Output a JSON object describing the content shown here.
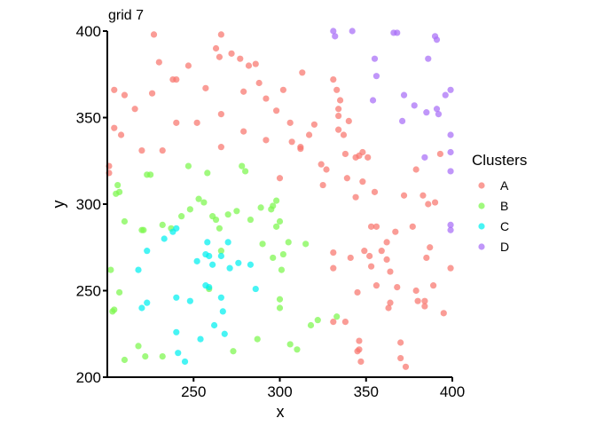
{
  "chart_data": {
    "type": "scatter",
    "title": "grid 7",
    "xlabel": "x",
    "ylabel": "y",
    "xlim": [
      200,
      400
    ],
    "ylim": [
      200,
      400
    ],
    "xticks": [
      250,
      300,
      350,
      400
    ],
    "yticks": [
      200,
      250,
      300,
      350,
      400
    ],
    "grid": false,
    "legend": {
      "title": "Clusters",
      "position": "right"
    },
    "series": [
      {
        "name": "A",
        "color": "#F8766D",
        "points": [
          [
            201,
            322
          ],
          [
            201,
            318
          ],
          [
            204,
            366
          ],
          [
            204,
            344
          ],
          [
            210,
            363
          ],
          [
            208,
            340
          ],
          [
            216,
            355
          ],
          [
            220,
            331
          ],
          [
            226,
            364
          ],
          [
            227,
            398
          ],
          [
            230,
            382
          ],
          [
            232,
            331
          ],
          [
            238,
            372
          ],
          [
            240,
            372
          ],
          [
            240,
            347
          ],
          [
            247,
            380
          ],
          [
            252,
            347
          ],
          [
            257,
            367
          ],
          [
            263,
            390
          ],
          [
            265,
            385
          ],
          [
            266,
            398
          ],
          [
            266,
            352
          ],
          [
            266,
            333
          ],
          [
            272,
            387
          ],
          [
            277,
            384
          ],
          [
            279,
            342
          ],
          [
            279,
            365
          ],
          [
            282,
            380
          ],
          [
            286,
            381
          ],
          [
            288,
            370
          ],
          [
            292,
            361
          ],
          [
            292,
            337
          ],
          [
            298,
            354
          ],
          [
            300,
            315
          ],
          [
            302,
            366
          ],
          [
            306,
            347
          ],
          [
            307,
            336
          ],
          [
            312,
            332
          ],
          [
            312,
            333
          ],
          [
            313,
            376
          ],
          [
            317,
            340
          ],
          [
            320,
            346
          ],
          [
            324,
            323
          ],
          [
            325,
            311
          ],
          [
            327,
            320
          ],
          [
            331,
            372
          ],
          [
            333,
            366
          ],
          [
            334,
            351
          ],
          [
            334,
            355
          ],
          [
            334,
            343
          ],
          [
            335,
            360
          ],
          [
            337,
            340
          ],
          [
            338,
            329
          ],
          [
            339,
            315
          ],
          [
            340,
            348
          ],
          [
            341,
            269
          ],
          [
            344,
            327
          ],
          [
            344,
            304
          ],
          [
            346,
            328
          ],
          [
            348,
            330
          ],
          [
            348,
            313
          ],
          [
            351,
            327
          ],
          [
            355,
            307
          ],
          [
            331,
            272
          ],
          [
            331,
            263
          ],
          [
            338,
            232
          ],
          [
            331,
            232
          ],
          [
            345,
            249
          ],
          [
            345,
            215
          ],
          [
            346,
            221
          ],
          [
            346,
            216
          ],
          [
            347,
            209
          ],
          [
            349,
            273
          ],
          [
            352,
            270
          ],
          [
            353,
            287
          ],
          [
            353,
            264
          ],
          [
            356,
            287
          ],
          [
            356,
            253
          ],
          [
            359,
            273
          ],
          [
            362,
            268
          ],
          [
            362,
            278
          ],
          [
            363,
            240
          ],
          [
            364,
            243
          ],
          [
            364,
            261
          ],
          [
            367,
            284
          ],
          [
            368,
            252
          ],
          [
            370,
            220
          ],
          [
            370,
            211
          ],
          [
            372,
            305
          ],
          [
            373,
            206
          ],
          [
            377,
            287
          ],
          [
            379,
            250
          ],
          [
            379,
            320
          ],
          [
            380,
            244
          ],
          [
            384,
            244
          ],
          [
            383,
            305
          ],
          [
            384,
            241
          ],
          [
            385,
            269
          ],
          [
            386,
            300
          ],
          [
            387,
            275
          ],
          [
            390,
            301
          ],
          [
            389,
            253
          ],
          [
            393,
            329
          ],
          [
            395,
            237
          ],
          [
            399,
            263
          ]
        ]
      },
      {
        "name": "B",
        "color": "#7CF74C",
        "points": [
          [
            202,
            262
          ],
          [
            203,
            238
          ],
          [
            204,
            239
          ],
          [
            205,
            306
          ],
          [
            206,
            311
          ],
          [
            207,
            307
          ],
          [
            207,
            249
          ],
          [
            210,
            290
          ],
          [
            210,
            210
          ],
          [
            218,
            218
          ],
          [
            220,
            285
          ],
          [
            221,
            285
          ],
          [
            222,
            212
          ],
          [
            223,
            317
          ],
          [
            225,
            317
          ],
          [
            232,
            288
          ],
          [
            232,
            212
          ],
          [
            237,
            286
          ],
          [
            243,
            293
          ],
          [
            247,
            322
          ],
          [
            248,
            297
          ],
          [
            253,
            303
          ],
          [
            256,
            301
          ],
          [
            258,
            318
          ],
          [
            259,
            251
          ],
          [
            261,
            293
          ],
          [
            263,
            291
          ],
          [
            265,
            286
          ],
          [
            266,
            273
          ],
          [
            270,
            294
          ],
          [
            275,
            296
          ],
          [
            278,
            322
          ],
          [
            280,
            319
          ],
          [
            283,
            291
          ],
          [
            287,
            222
          ],
          [
            289,
            298
          ],
          [
            290,
            277
          ],
          [
            295,
            297
          ],
          [
            296,
            269
          ],
          [
            296,
            299
          ],
          [
            298,
            302
          ],
          [
            298,
            287
          ],
          [
            300,
            290
          ],
          [
            300,
            245
          ],
          [
            300,
            240
          ],
          [
            301,
            262
          ],
          [
            302,
            271
          ],
          [
            305,
            278
          ],
          [
            306,
            219
          ],
          [
            310,
            216
          ],
          [
            315,
            277
          ],
          [
            318,
            230
          ],
          [
            322,
            233
          ],
          [
            333,
            235
          ],
          [
            273,
            215
          ]
        ]
      },
      {
        "name": "C",
        "color": "#00F0F0",
        "points": [
          [
            218,
            262
          ],
          [
            220,
            240
          ],
          [
            223,
            243
          ],
          [
            223,
            273
          ],
          [
            233,
            280
          ],
          [
            238,
            284
          ],
          [
            240,
            286
          ],
          [
            240,
            246
          ],
          [
            240,
            226
          ],
          [
            241,
            214
          ],
          [
            245,
            209
          ],
          [
            248,
            244
          ],
          [
            252,
            267
          ],
          [
            254,
            222
          ],
          [
            257,
            271
          ],
          [
            257,
            253
          ],
          [
            258,
            278
          ],
          [
            259,
            270
          ],
          [
            259,
            252
          ],
          [
            261,
            265
          ],
          [
            262,
            230
          ],
          [
            266,
            270
          ],
          [
            266,
            246
          ],
          [
            267,
            238
          ],
          [
            268,
            225
          ],
          [
            270,
            278
          ],
          [
            271,
            263
          ],
          [
            276,
            266
          ],
          [
            283,
            265
          ],
          [
            286,
            251
          ]
        ]
      },
      {
        "name": "D",
        "color": "#A86EF6",
        "points": [
          [
            331,
            400
          ],
          [
            332,
            397
          ],
          [
            342,
            400
          ],
          [
            354,
            360
          ],
          [
            355,
            384
          ],
          [
            356,
            374
          ],
          [
            366,
            399
          ],
          [
            368,
            399
          ],
          [
            371,
            348
          ],
          [
            372,
            363
          ],
          [
            378,
            357
          ],
          [
            384,
            327
          ],
          [
            385,
            353
          ],
          [
            386,
            384
          ],
          [
            390,
            397
          ],
          [
            391,
            355
          ],
          [
            391,
            395
          ],
          [
            392,
            352
          ],
          [
            396,
            363
          ],
          [
            399,
            366
          ],
          [
            399,
            340
          ],
          [
            399,
            330
          ],
          [
            399,
            319
          ],
          [
            399,
            288
          ],
          [
            399,
            285
          ]
        ]
      }
    ]
  }
}
